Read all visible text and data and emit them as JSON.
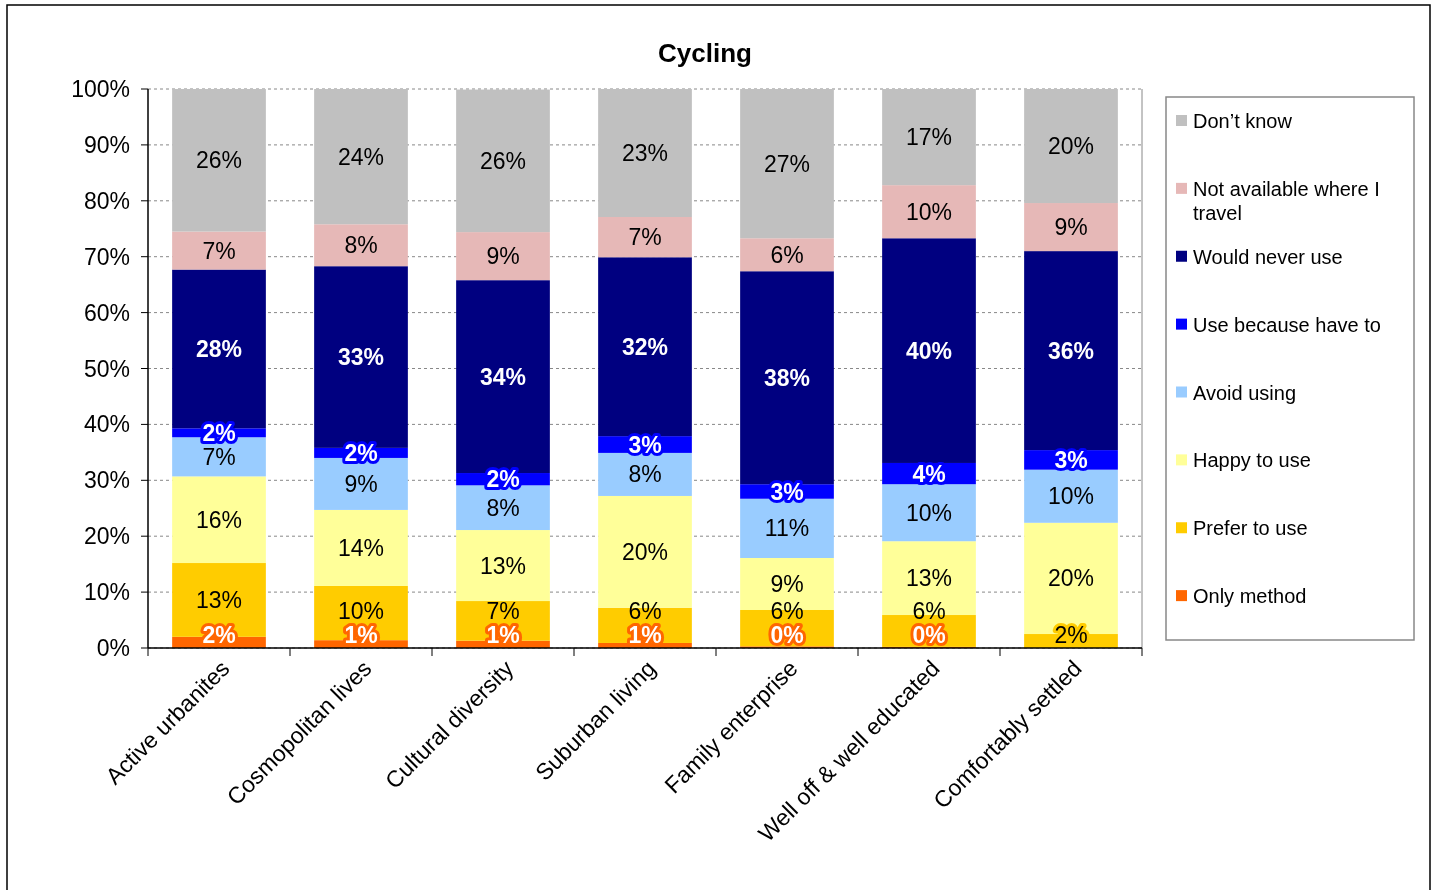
{
  "chart_data": {
    "type": "bar",
    "stacked": true,
    "title": "Cycling",
    "categories": [
      "Active urbanites",
      "Cosmopolitan lives",
      "Cultural diversity",
      "Suburban living",
      "Family enterprise",
      "Well off & well educated",
      "Comfortably settled"
    ],
    "series": [
      {
        "name": "Only method",
        "color": "#ff6600",
        "values": [
          2.0,
          1.4,
          1.3,
          0.9,
          0.3,
          0.2,
          0
        ],
        "value_labels": [
          "2%",
          "1%",
          "1%",
          "1%",
          "0%",
          "0%",
          null
        ]
      },
      {
        "name": "Prefer to use",
        "color": "#ffcc00",
        "values": [
          13.2,
          9.7,
          7.1,
          6.3,
          6.5,
          5.7,
          2.5
        ],
        "value_labels": [
          "13%",
          "10%",
          "7%",
          "6%",
          "6%",
          "6%",
          "2%"
        ]
      },
      {
        "name": "Happy to use",
        "color": "#ffff99",
        "values": [
          15.5,
          13.6,
          12.7,
          20.0,
          9.3,
          13.2,
          19.9
        ],
        "value_labels": [
          "16%",
          "14%",
          "13%",
          "20%",
          "9%",
          "13%",
          "20%"
        ]
      },
      {
        "name": "Avoid using",
        "color": "#99ccff",
        "values": [
          7.0,
          9.3,
          8.0,
          7.7,
          10.6,
          10.2,
          9.5
        ],
        "value_labels": [
          "7%",
          "9%",
          "8%",
          "8%",
          "11%",
          "10%",
          "10%"
        ]
      },
      {
        "name": "Use because have to",
        "color": "#0000ff",
        "values": [
          1.6,
          1.8,
          2.2,
          3.0,
          2.6,
          3.8,
          3.5
        ],
        "value_labels": [
          "2%",
          "2%",
          "2%",
          "3%",
          "3%",
          "4%",
          "3%"
        ]
      },
      {
        "name": "Would never use",
        "color": "#000080",
        "values": [
          28.4,
          32.5,
          34.5,
          32.0,
          38.1,
          40.2,
          35.6
        ],
        "value_labels": [
          "28%",
          "33%",
          "34%",
          "32%",
          "38%",
          "40%",
          "36%"
        ]
      },
      {
        "name": "Not available where I travel",
        "color": "#e6b8b7",
        "values": [
          6.8,
          7.5,
          8.6,
          7.2,
          5.9,
          9.5,
          8.6
        ],
        "value_labels": [
          "7%",
          "8%",
          "9%",
          "7%",
          "6%",
          "10%",
          "9%"
        ]
      },
      {
        "name": "Don’t know",
        "color": "#c0c0c0",
        "values": [
          25.5,
          24.2,
          25.5,
          22.9,
          26.7,
          17.2,
          20.4
        ],
        "value_labels": [
          "26%",
          "24%",
          "26%",
          "23%",
          "27%",
          "17%",
          "20%"
        ]
      }
    ],
    "ylim": [
      0,
      100
    ],
    "yticks": [
      {
        "value": 0,
        "label": "0%"
      },
      {
        "value": 10,
        "label": "10%"
      },
      {
        "value": 20,
        "label": "20%"
      },
      {
        "value": 30,
        "label": "30%"
      },
      {
        "value": 40,
        "label": "40%"
      },
      {
        "value": 50,
        "label": "50%"
      },
      {
        "value": 60,
        "label": "60%"
      },
      {
        "value": 70,
        "label": "70%"
      },
      {
        "value": 80,
        "label": "80%"
      },
      {
        "value": 90,
        "label": "90%"
      },
      {
        "value": 100,
        "label": "100%"
      }
    ],
    "grid": "y",
    "legend": "right"
  }
}
